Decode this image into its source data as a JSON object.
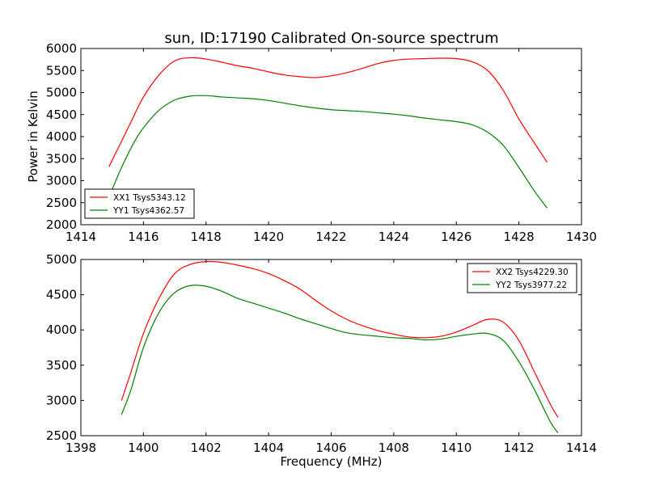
{
  "title": "sun, ID:17190 Calibrated On-source spectrum",
  "chart_data": [
    {
      "type": "line",
      "ylabel": "Power in Kelvin",
      "xlabel": "",
      "xlim": [
        1414,
        1430
      ],
      "ylim": [
        2000,
        6000
      ],
      "xticks": [
        1414,
        1416,
        1418,
        1420,
        1422,
        1424,
        1426,
        1428,
        1430
      ],
      "yticks": [
        2000,
        2500,
        3000,
        3500,
        4000,
        4500,
        5000,
        5500,
        6000
      ],
      "legend_position": "lower-left",
      "series": [
        {
          "name": "XX1 Tsys5343.12",
          "color": "#ff0000",
          "x": [
            1414.9,
            1415.2,
            1415.6,
            1416.0,
            1416.5,
            1417.0,
            1417.5,
            1418.0,
            1418.5,
            1419.0,
            1419.5,
            1420.0,
            1420.5,
            1421.0,
            1421.5,
            1422.0,
            1422.5,
            1423.0,
            1423.5,
            1424.0,
            1424.5,
            1425.0,
            1425.5,
            1426.0,
            1426.5,
            1427.0,
            1427.5,
            1428.0,
            1428.5,
            1428.9
          ],
          "y": [
            3320,
            3750,
            4330,
            4900,
            5400,
            5720,
            5790,
            5760,
            5690,
            5610,
            5550,
            5470,
            5400,
            5360,
            5340,
            5380,
            5450,
            5550,
            5660,
            5730,
            5760,
            5770,
            5780,
            5770,
            5700,
            5500,
            5050,
            4400,
            3850,
            3420
          ]
        },
        {
          "name": "YY1 Tsys4362.57",
          "color": "#008000",
          "x": [
            1415.0,
            1415.3,
            1415.7,
            1416.0,
            1416.5,
            1417.0,
            1417.5,
            1418.0,
            1418.5,
            1419.0,
            1419.5,
            1420.0,
            1420.5,
            1421.0,
            1421.5,
            1422.0,
            1422.5,
            1423.0,
            1423.5,
            1424.0,
            1424.5,
            1425.0,
            1425.5,
            1426.0,
            1426.5,
            1427.0,
            1427.5,
            1428.0,
            1428.5,
            1428.9
          ],
          "y": [
            2800,
            3300,
            3870,
            4200,
            4600,
            4830,
            4920,
            4930,
            4900,
            4880,
            4860,
            4820,
            4760,
            4700,
            4650,
            4610,
            4590,
            4570,
            4540,
            4510,
            4470,
            4420,
            4380,
            4340,
            4270,
            4100,
            3800,
            3300,
            2760,
            2380
          ]
        }
      ]
    },
    {
      "type": "line",
      "ylabel": "",
      "xlabel": "Frequency (MHz)",
      "xlim": [
        1398,
        1414
      ],
      "ylim": [
        2500,
        5000
      ],
      "xticks": [
        1398,
        1400,
        1402,
        1404,
        1406,
        1408,
        1410,
        1412,
        1414
      ],
      "yticks": [
        2500,
        3000,
        3500,
        4000,
        4500,
        5000
      ],
      "legend_position": "upper-right",
      "series": [
        {
          "name": "XX2 Tsys4229.30",
          "color": "#ff0000",
          "x": [
            1399.3,
            1399.6,
            1400.0,
            1400.5,
            1401.0,
            1401.5,
            1402.0,
            1402.5,
            1403.0,
            1403.5,
            1404.0,
            1404.5,
            1405.0,
            1405.5,
            1406.0,
            1406.5,
            1407.0,
            1407.5,
            1408.0,
            1408.5,
            1409.0,
            1409.5,
            1410.0,
            1410.5,
            1411.0,
            1411.5,
            1412.0,
            1412.5,
            1413.0,
            1413.25
          ],
          "y": [
            3000,
            3400,
            3950,
            4450,
            4800,
            4930,
            4970,
            4960,
            4920,
            4870,
            4800,
            4700,
            4580,
            4420,
            4270,
            4150,
            4060,
            3990,
            3940,
            3900,
            3890,
            3910,
            3970,
            4060,
            4150,
            4110,
            3850,
            3400,
            2950,
            2760
          ]
        },
        {
          "name": "YY2 Tsys3977.22",
          "color": "#008000",
          "x": [
            1399.3,
            1399.6,
            1400.0,
            1400.5,
            1401.0,
            1401.5,
            1402.0,
            1402.5,
            1403.0,
            1403.5,
            1404.0,
            1404.5,
            1405.0,
            1405.5,
            1406.0,
            1406.5,
            1407.0,
            1407.5,
            1408.0,
            1408.5,
            1409.0,
            1409.5,
            1410.0,
            1410.5,
            1411.0,
            1411.5,
            1412.0,
            1412.5,
            1413.0,
            1413.25
          ],
          "y": [
            2800,
            3150,
            3750,
            4250,
            4530,
            4630,
            4620,
            4550,
            4450,
            4380,
            4310,
            4240,
            4160,
            4090,
            4020,
            3960,
            3930,
            3910,
            3890,
            3880,
            3860,
            3870,
            3910,
            3940,
            3950,
            3850,
            3550,
            3150,
            2700,
            2540
          ]
        }
      ]
    }
  ]
}
